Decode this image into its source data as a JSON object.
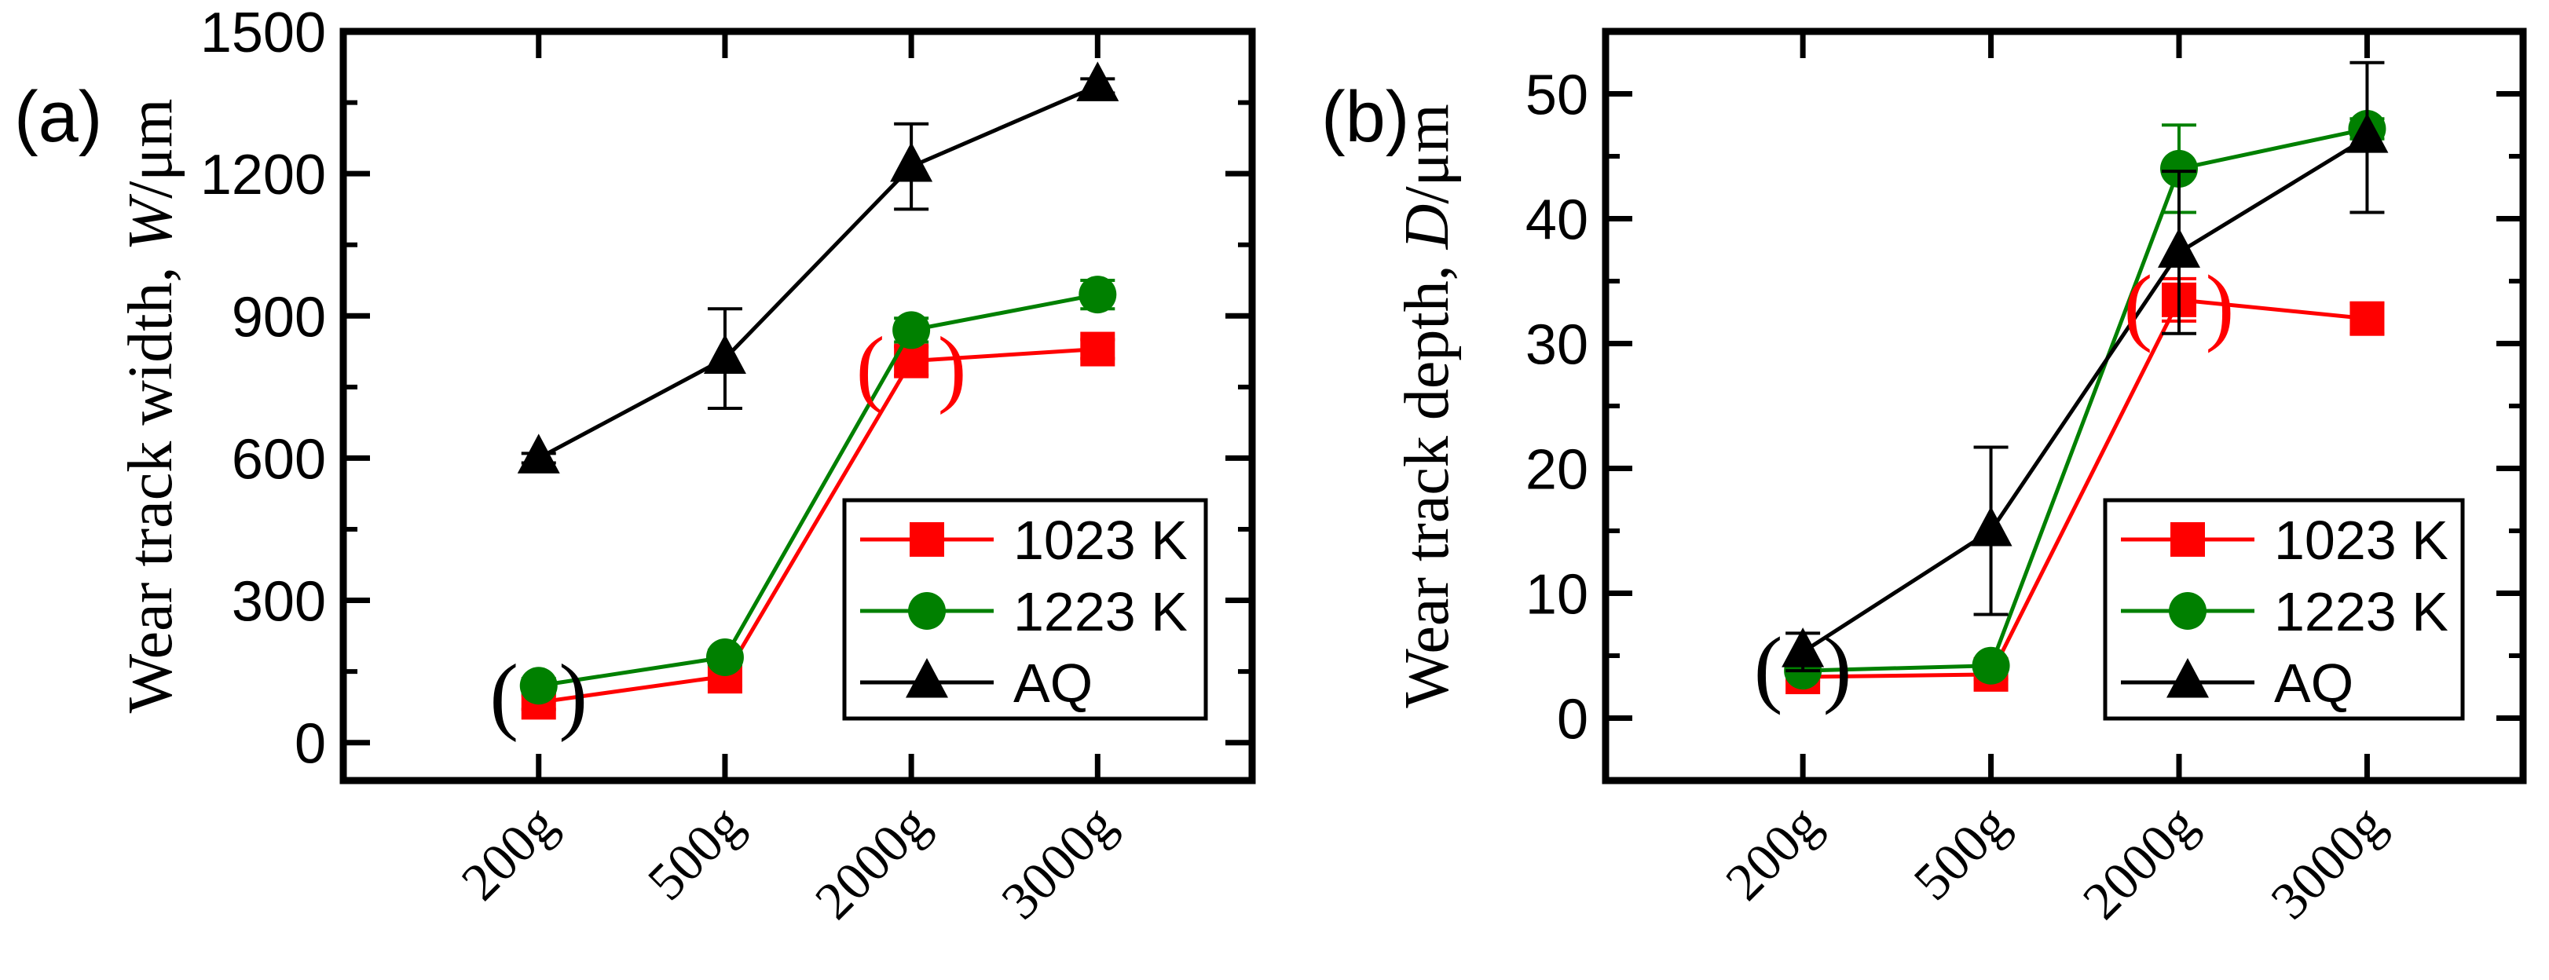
{
  "chart_data": [
    {
      "panel_label": "(a)",
      "type": "line",
      "categories": [
        "200g",
        "500g",
        "2000g",
        "3000g"
      ],
      "ylabel_prefix": "Wear track width, ",
      "ylabel_var": "W",
      "ylabel_unit": "/μm",
      "ylim": [
        -80,
        1500
      ],
      "yticks": [
        0,
        300,
        600,
        900,
        1200,
        1500
      ],
      "ytick_labels": [
        "0",
        "300",
        "600",
        "900",
        "1200",
        "1500"
      ],
      "series": [
        {
          "name": "1023 K",
          "color": "#ff0000",
          "marker": "square",
          "values": [
            85,
            140,
            805,
            830
          ],
          "errors": [
            15,
            20,
            30,
            20
          ]
        },
        {
          "name": "1223 K",
          "color": "#008000",
          "marker": "circle",
          "values": [
            120,
            180,
            870,
            945
          ],
          "errors": [
            15,
            15,
            25,
            30
          ]
        },
        {
          "name": "AQ",
          "color": "#000000",
          "marker": "triangle",
          "values": [
            600,
            810,
            1215,
            1385
          ],
          "errors": [
            10,
            105,
            90,
            15
          ]
        }
      ],
      "annotations": [
        {
          "text": "(",
          "category": "200g",
          "value": 100
        },
        {
          "text": ")",
          "category": "200g",
          "value": 100
        },
        {
          "text": "(",
          "category": "2000g",
          "value": 790
        },
        {
          "text": ")",
          "category": "2000g",
          "value": 790
        }
      ],
      "legend_position": "bottom-right"
    },
    {
      "panel_label": "(b)",
      "type": "line",
      "categories": [
        "200g",
        "500g",
        "2000g",
        "3000g"
      ],
      "ylabel_prefix": "Wear track depth, ",
      "ylabel_var": "D",
      "ylabel_unit": "/μm",
      "ylim": [
        -5,
        55
      ],
      "yticks": [
        0,
        10,
        20,
        30,
        40,
        50
      ],
      "ytick_labels": [
        "0",
        "10",
        "20",
        "30",
        "40",
        "50"
      ],
      "series": [
        {
          "name": "1023 K",
          "color": "#ff0000",
          "marker": "square",
          "values": [
            3.3,
            3.5,
            33.5,
            32
          ],
          "errors": [
            0.3,
            0.4,
            1.7,
            1.2
          ]
        },
        {
          "name": "1223 K",
          "color": "#008000",
          "marker": "circle",
          "values": [
            3.8,
            4.2,
            44,
            47.2
          ],
          "errors": [
            0.3,
            0.3,
            3.5,
            0.8
          ]
        },
        {
          "name": "AQ",
          "color": "#000000",
          "marker": "triangle",
          "values": [
            5.3,
            15,
            37.3,
            46.5
          ],
          "errors": [
            1.5,
            6.7,
            6.5,
            6
          ]
        }
      ],
      "annotations": [
        {
          "text": "(",
          "category": "200g",
          "value": 4
        },
        {
          "text": ")",
          "category": "200g",
          "value": 4
        },
        {
          "text": "(",
          "category": "2000g",
          "value": 33
        },
        {
          "text": ")",
          "category": "2000g",
          "value": 33
        }
      ],
      "legend_position": "bottom-right"
    }
  ]
}
